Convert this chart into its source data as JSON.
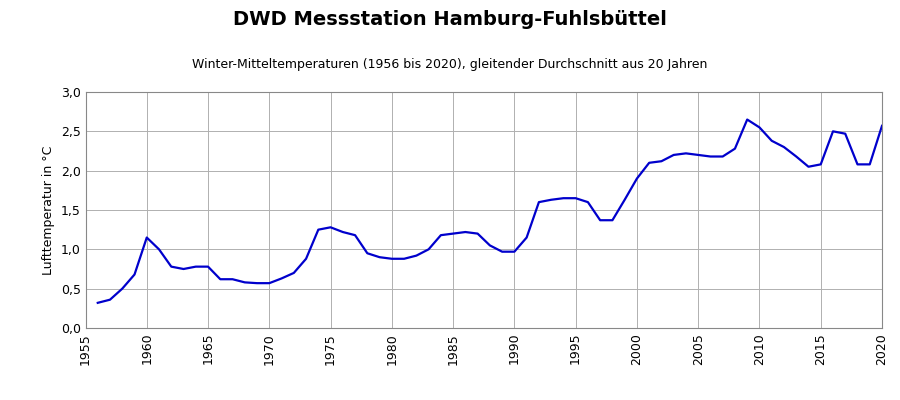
{
  "title": "DWD Messstation Hamburg-Fuhlsbüttel",
  "subtitle": "Winter-Mitteltemperaturen (1956 bis 2020), gleitender Durchschnitt aus 20 Jahren",
  "ylabel": "Lufttemperatur in °C",
  "line_color": "#0000cc",
  "line_width": 1.6,
  "background_color": "#ffffff",
  "grid_color": "#b0b0b0",
  "xlim": [
    1955,
    2020
  ],
  "ylim": [
    0.0,
    3.0
  ],
  "yticks": [
    0.0,
    0.5,
    1.0,
    1.5,
    2.0,
    2.5,
    3.0
  ],
  "xticks": [
    1955,
    1960,
    1965,
    1970,
    1975,
    1980,
    1985,
    1990,
    1995,
    2000,
    2005,
    2010,
    2015,
    2020
  ],
  "years": [
    1956,
    1957,
    1958,
    1959,
    1960,
    1961,
    1962,
    1963,
    1964,
    1965,
    1966,
    1967,
    1968,
    1969,
    1970,
    1971,
    1972,
    1973,
    1974,
    1975,
    1976,
    1977,
    1978,
    1979,
    1980,
    1981,
    1982,
    1983,
    1984,
    1985,
    1986,
    1987,
    1988,
    1989,
    1990,
    1991,
    1992,
    1993,
    1994,
    1995,
    1996,
    1997,
    1998,
    1999,
    2000,
    2001,
    2002,
    2003,
    2004,
    2005,
    2006,
    2007,
    2008,
    2009,
    2010,
    2011,
    2012,
    2013,
    2014,
    2015,
    2016,
    2017,
    2018,
    2019,
    2020
  ],
  "values": [
    0.32,
    0.36,
    0.5,
    0.68,
    1.15,
    1.0,
    0.78,
    0.75,
    0.78,
    0.78,
    0.62,
    0.62,
    0.58,
    0.57,
    0.57,
    0.63,
    0.7,
    0.88,
    1.25,
    1.28,
    1.22,
    1.18,
    0.95,
    0.9,
    0.88,
    0.88,
    0.92,
    1.0,
    1.18,
    1.2,
    1.22,
    1.2,
    1.05,
    0.97,
    0.97,
    1.15,
    1.6,
    1.63,
    1.65,
    1.65,
    1.6,
    1.37,
    1.37,
    1.63,
    1.9,
    2.1,
    2.12,
    2.2,
    2.22,
    2.2,
    2.18,
    2.18,
    2.28,
    2.65,
    2.55,
    2.38,
    2.3,
    2.18,
    2.05,
    2.08,
    2.5,
    2.47,
    2.08,
    2.08,
    2.57
  ],
  "title_fontsize": 14,
  "subtitle_fontsize": 9,
  "ylabel_fontsize": 9,
  "tick_fontsize": 9
}
